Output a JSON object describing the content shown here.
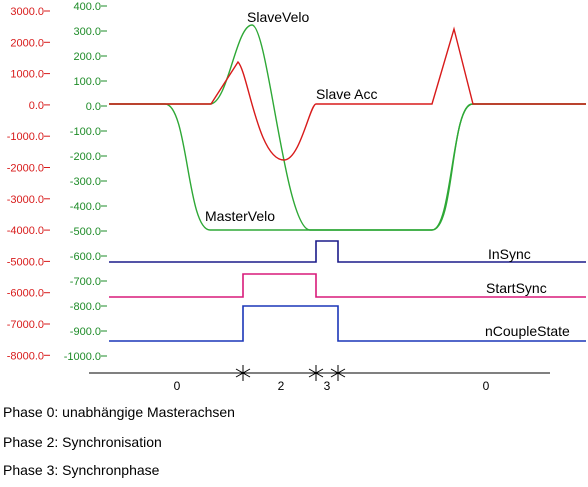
{
  "chart_data": {
    "type": "line",
    "title": "",
    "y_left": {
      "color": "#d81b1b",
      "range": [
        -8000,
        3000
      ],
      "ticks": [
        "3000.0",
        "2000.0",
        "1000.0",
        "0.0",
        "-1000.0",
        "-2000.0",
        "-3000.0",
        "-4000.0",
        "-5000.0",
        "-6000.0",
        "-7000.0",
        "-8000.0"
      ]
    },
    "y_right": {
      "color": "#1e8c28",
      "range": [
        -1000,
        400
      ],
      "ticks": [
        "400.0",
        "300.0",
        "200.0",
        "100.0",
        "0.0",
        "-100.0",
        "-200.0",
        "-300.0",
        "-400.0",
        "-500.0",
        "-600.0",
        "-700.0",
        "-800.0",
        "-900.0",
        "-1000.0"
      ]
    },
    "series_labels": {
      "slave_velo": "SlaveVelo",
      "slave_acc": "Slave Acc",
      "master_velo": "MasterVelo",
      "in_sync": "InSync",
      "start_sync": "StartSync",
      "n_couple_state": "nCoupleState"
    },
    "colors": {
      "slave_velo": "#2ea836",
      "master_velo": "#2ea836",
      "slave_acc": "#d81b1b",
      "in_sync": "#1c1c8a",
      "start_sync": "#d81a7a",
      "n_couple_state": "#1a36b8"
    },
    "phases": [
      "0",
      "2",
      "3",
      "0"
    ]
  },
  "captions": [
    "Phase 0: unabhängige Masterachsen",
    "Phase 2: Synchronisation",
    "Phase 3: Synchronphase"
  ]
}
